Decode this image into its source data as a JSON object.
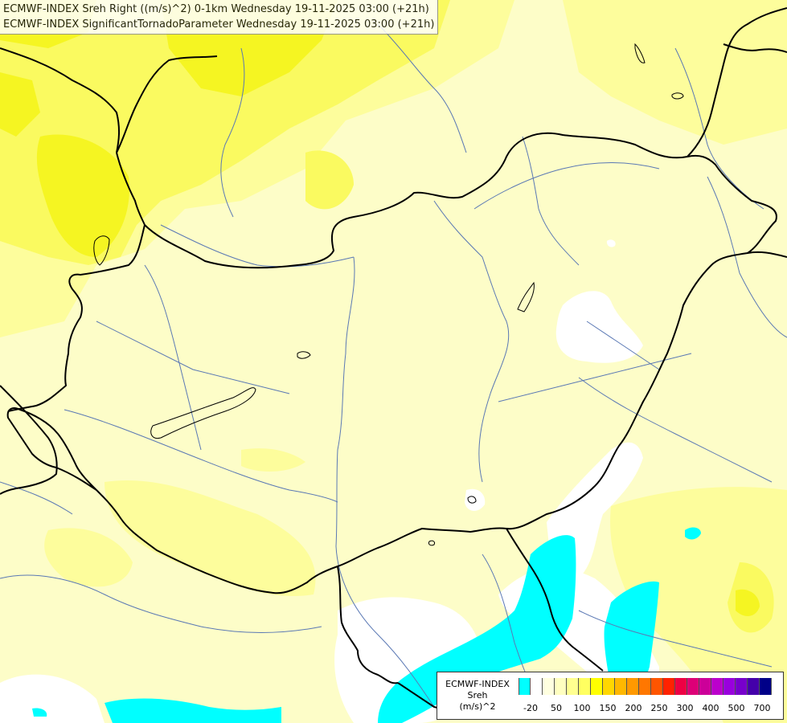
{
  "header": {
    "line1": "ECMWF-INDEX Sreh Right ((m/s)^2) 0-1km Wednesday 19-11-2025 03:00 (+21h)",
    "line2": "ECMWF-INDEX SignificantTornadoParameter Wednesday 19-11-2025 03:00 (+21h)"
  },
  "legend": {
    "title_line1": "ECMWF-INDEX",
    "title_line2": "Sreh",
    "title_line3": "(m/s)^2",
    "colors": [
      "#00ffff",
      "#ffffff",
      "#ffffe0",
      "#ffffc0",
      "#ffff90",
      "#ffff60",
      "#ffff00",
      "#ffd700",
      "#ffb800",
      "#ff9900",
      "#ff7700",
      "#ff5500",
      "#ff2200",
      "#ee0044",
      "#dd0077",
      "#cc0099",
      "#bb00cc",
      "#9900dd",
      "#7700cc",
      "#4400aa",
      "#000088"
    ],
    "ticks": [
      "-20",
      "50",
      "100",
      "150",
      "200",
      "250",
      "300",
      "400",
      "500",
      "700"
    ]
  },
  "map_colors": {
    "pale_yellow": "#fdfdc8",
    "light_yellow": "#fdfd9c",
    "yellow": "#fafa60",
    "bright_yellow": "#f5f522",
    "white": "#ffffff",
    "cyan": "#00ffff",
    "border": "#000000",
    "river": "#5a78b4"
  }
}
